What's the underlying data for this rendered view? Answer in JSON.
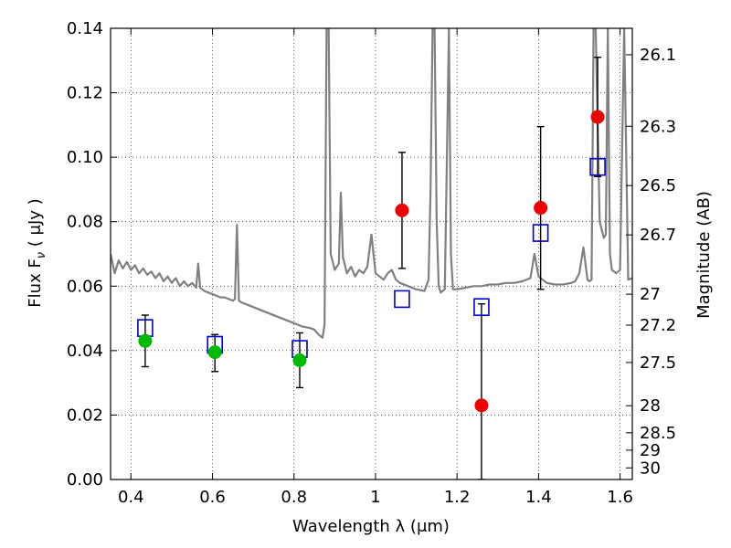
{
  "chart_data": {
    "type": "scatter",
    "xlabel": "Wavelength  λ (μm)",
    "ylabel_left": "Flux  F",
    "ylabel_left_sub": "ν",
    "ylabel_left_unit": "  ( μJy )",
    "ylabel_right": "Magnitude (AB)",
    "xlim": [
      0.35,
      1.63
    ],
    "ylim": [
      0.0,
      0.14
    ],
    "grid": true,
    "x_ticks": [
      0.4,
      0.6,
      0.8,
      1.0,
      1.2,
      1.4,
      1.6
    ],
    "x_tick_labels": [
      "0.4",
      "0.6",
      "0.8",
      "1",
      "1.2",
      "1.4",
      "1.6"
    ],
    "y_ticks": [
      0.0,
      0.02,
      0.04,
      0.06,
      0.08,
      0.1,
      0.12,
      0.14
    ],
    "y_tick_labels": [
      "0.00",
      "0.02",
      "0.04",
      "0.06",
      "0.08",
      "0.10",
      "0.12",
      "0.14"
    ],
    "right_ticks": [
      {
        "label": "26.1",
        "flux": 0.1318
      },
      {
        "label": "26.3",
        "flux": 0.1096
      },
      {
        "label": "26.5",
        "flux": 0.0912
      },
      {
        "label": "26.7",
        "flux": 0.0759
      },
      {
        "label": "27",
        "flux": 0.0575
      },
      {
        "label": "27.2",
        "flux": 0.0479
      },
      {
        "label": "27.5",
        "flux": 0.0363
      },
      {
        "label": "28",
        "flux": 0.0229
      },
      {
        "label": "28.5",
        "flux": 0.0145
      },
      {
        "label": "29",
        "flux": 0.0091
      },
      {
        "label": "30",
        "flux": 0.0036
      }
    ],
    "series": [
      {
        "marker": "circle",
        "color": "#00bb00",
        "x": [
          0.435,
          0.606,
          0.814
        ],
        "y": [
          0.043,
          0.0395,
          0.037
        ],
        "err_lo": [
          0.035,
          0.0335,
          0.0285
        ],
        "err_hi": [
          0.051,
          0.045,
          0.0455
        ]
      },
      {
        "marker": "circle",
        "color": "#ee0000",
        "x": [
          1.065,
          1.26,
          1.405,
          1.545
        ],
        "y": [
          0.0835,
          0.023,
          0.0843,
          0.1125
        ],
        "err_lo": [
          0.0655,
          0.0,
          0.059,
          0.094
        ],
        "err_hi": [
          0.1015,
          0.0545,
          0.1095,
          0.131
        ]
      },
      {
        "marker": "open-square",
        "color": "#0000cc",
        "x": [
          0.435,
          0.606,
          0.814,
          1.065,
          1.26,
          1.405,
          1.545
        ],
        "y": [
          0.047,
          0.0418,
          0.0405,
          0.056,
          0.0535,
          0.0765,
          0.097
        ]
      }
    ],
    "spectrum": {
      "color": "#808080",
      "x": [
        0.35,
        0.36,
        0.37,
        0.38,
        0.39,
        0.4,
        0.41,
        0.42,
        0.43,
        0.44,
        0.45,
        0.46,
        0.47,
        0.48,
        0.49,
        0.5,
        0.51,
        0.52,
        0.53,
        0.54,
        0.55,
        0.56,
        0.565,
        0.57,
        0.575,
        0.58,
        0.59,
        0.6,
        0.61,
        0.62,
        0.63,
        0.64,
        0.65,
        0.655,
        0.66,
        0.665,
        0.67,
        0.68,
        0.7,
        0.72,
        0.74,
        0.76,
        0.78,
        0.8,
        0.82,
        0.84,
        0.85,
        0.86,
        0.87,
        0.875,
        0.88,
        0.885,
        0.89,
        0.9,
        0.91,
        0.915,
        0.92,
        0.93,
        0.94,
        0.95,
        0.96,
        0.97,
        0.98,
        0.99,
        1.0,
        1.01,
        1.02,
        1.03,
        1.04,
        1.05,
        1.06,
        1.08,
        1.1,
        1.12,
        1.13,
        1.135,
        1.14,
        1.145,
        1.15,
        1.155,
        1.16,
        1.17,
        1.18,
        1.185,
        1.19,
        1.2,
        1.22,
        1.24,
        1.26,
        1.28,
        1.3,
        1.32,
        1.34,
        1.36,
        1.38,
        1.39,
        1.4,
        1.41,
        1.42,
        1.44,
        1.46,
        1.48,
        1.49,
        1.5,
        1.51,
        1.52,
        1.525,
        1.53,
        1.535,
        1.54,
        1.55,
        1.56,
        1.565,
        1.57,
        1.575,
        1.58,
        1.59,
        1.6,
        1.61,
        1.62,
        1.63
      ],
      "y": [
        0.07,
        0.064,
        0.068,
        0.0655,
        0.0675,
        0.065,
        0.0665,
        0.064,
        0.0655,
        0.0635,
        0.0645,
        0.0625,
        0.064,
        0.0615,
        0.063,
        0.061,
        0.0625,
        0.06,
        0.0615,
        0.06,
        0.061,
        0.0595,
        0.067,
        0.0595,
        0.059,
        0.0585,
        0.058,
        0.0575,
        0.057,
        0.0565,
        0.0565,
        0.056,
        0.0555,
        0.056,
        0.079,
        0.0555,
        0.055,
        0.0545,
        0.0535,
        0.0525,
        0.0515,
        0.0505,
        0.0495,
        0.0485,
        0.0475,
        0.047,
        0.0465,
        0.045,
        0.044,
        0.048,
        0.14,
        0.14,
        0.07,
        0.065,
        0.067,
        0.089,
        0.069,
        0.064,
        0.066,
        0.063,
        0.065,
        0.064,
        0.066,
        0.076,
        0.064,
        0.063,
        0.062,
        0.064,
        0.065,
        0.062,
        0.061,
        0.06,
        0.059,
        0.0585,
        0.062,
        0.09,
        0.14,
        0.14,
        0.08,
        0.06,
        0.058,
        0.059,
        0.14,
        0.07,
        0.059,
        0.059,
        0.0595,
        0.06,
        0.06,
        0.0605,
        0.0605,
        0.061,
        0.061,
        0.0615,
        0.0625,
        0.07,
        0.063,
        0.062,
        0.061,
        0.0605,
        0.0605,
        0.061,
        0.0615,
        0.064,
        0.072,
        0.062,
        0.0615,
        0.062,
        0.14,
        0.14,
        0.08,
        0.075,
        0.076,
        0.14,
        0.07,
        0.065,
        0.064,
        0.065,
        0.14,
        0.062,
        0.0625
      ]
    }
  }
}
